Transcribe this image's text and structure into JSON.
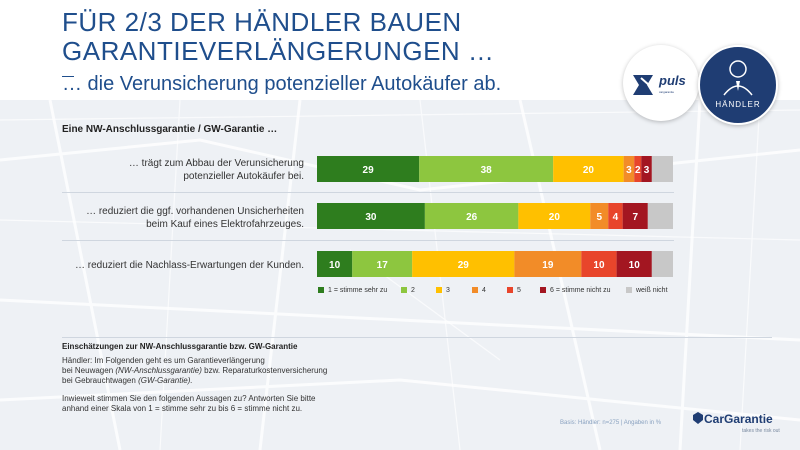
{
  "header": {
    "title_line1": "FÜR 2/3 DER HÄNDLER BAUEN",
    "title_line2": "GARANTIEVERLÄNGERUNGEN …",
    "subtitle": "… die Verunsicherung potenzieller Autokäufer ab."
  },
  "logos": {
    "puls_text": "puls",
    "puls_sub": "cargarantie",
    "badge_label": "HÄNDLER"
  },
  "chart_data": {
    "type": "bar",
    "orientation": "horizontal-stacked-100",
    "title": "Eine NW-Anschlussgarantie / GW-Garantie …",
    "categories": [
      "… trägt zum Abbau der Verunsicherung potenzieller Autokäufer bei.",
      "… reduziert die ggf. vorhandenen Unsicherheiten beim Kauf eines Elektrofahrzeuges.",
      "… reduziert die Nachlass-Erwartungen der Kunden."
    ],
    "category_lines": [
      [
        "… trägt zum Abbau der Verunsicherung",
        "potenzieller Autokäufer bei."
      ],
      [
        "… reduziert die ggf. vorhandenen Unsicherheiten",
        "beim Kauf eines Elektrofahrzeuges."
      ],
      [
        "… reduziert die Nachlass-Erwartungen der Kunden."
      ]
    ],
    "series": [
      {
        "name": "1 = stimme sehr zu",
        "color": "#2e7d1e",
        "values": [
          29,
          30,
          10
        ]
      },
      {
        "name": "2",
        "color": "#8dc63f",
        "values": [
          38,
          26,
          17
        ]
      },
      {
        "name": "3",
        "color": "#ffc000",
        "values": [
          20,
          20,
          29
        ]
      },
      {
        "name": "4",
        "color": "#f28c28",
        "values": [
          3,
          5,
          19
        ]
      },
      {
        "name": "5",
        "color": "#e8452b",
        "values": [
          2,
          4,
          10
        ]
      },
      {
        "name": "6 = stimme nicht zu",
        "color": "#a31621",
        "values": [
          3,
          7,
          10
        ]
      },
      {
        "name": "weiß nicht",
        "color": "#c8c8c8",
        "values": [
          6,
          7,
          6
        ]
      }
    ],
    "labels": [
      [
        "29",
        "38",
        "20",
        "3",
        "2",
        "3",
        ""
      ],
      [
        "30",
        "26",
        "20",
        "5",
        "4",
        "7",
        ""
      ],
      [
        "10",
        "17",
        "29",
        "19",
        "10",
        "10",
        ""
      ]
    ],
    "xlim": [
      0,
      100
    ],
    "unit": "%"
  },
  "info": {
    "title": "Einschätzungen zur NW-Anschlussgarantie bzw. GW-Garantie",
    "p1_line1": "Händler: Im Folgenden geht es um Garantieverlängerung",
    "p1_line2_a": "bei Neuwagen ",
    "p1_line2_em": "(NW-Anschlussgarantie)",
    "p1_line2_b": " bzw. Reparaturkostenversicherung",
    "p1_line3_a": "bei Gebrauchtwagen ",
    "p1_line3_em": "(GW-Garantie).",
    "p2_line1": "Inwieweit stimmen Sie den folgenden Aussagen zu? Antworten Sie bitte",
    "p2_line2": "anhand einer Skala von 1 = stimme sehr zu bis 6 = stimme nicht zu."
  },
  "footer": {
    "basis": "Basis: Händler: n=275 | Angaben in %",
    "brand": "CarGarantie",
    "slogan": "takes the risk out"
  }
}
